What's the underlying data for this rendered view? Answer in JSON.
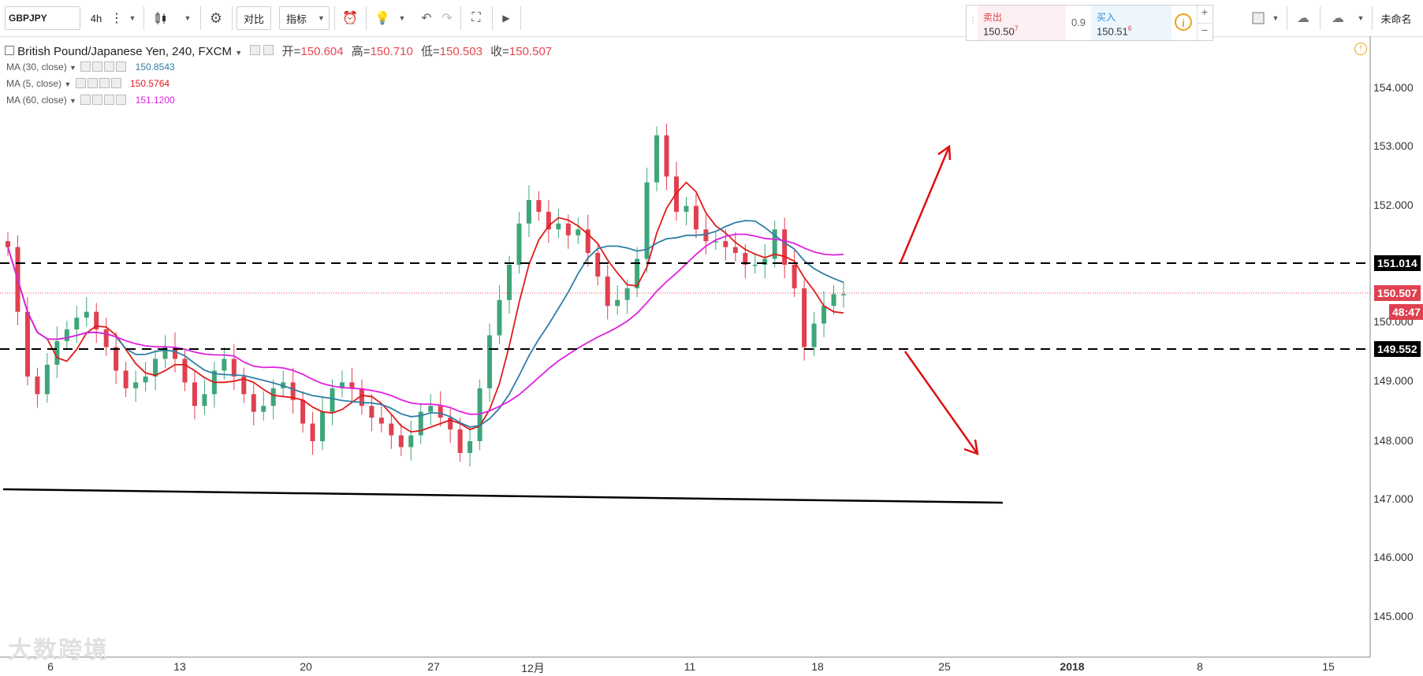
{
  "toolbar": {
    "symbol": "GBPJPY",
    "interval": "4h",
    "compare_label": "对比",
    "indicators_label": "指标",
    "layout_name": "未命名"
  },
  "quote": {
    "sell_label": "卖出",
    "sell_price": "150.50",
    "sell_price_sup": "7",
    "spread": "0.9",
    "buy_label": "买入",
    "buy_price": "150.51",
    "buy_price_sup": "6"
  },
  "header": {
    "title": "British Pound/Japanese Yen, 240, FXCM",
    "open_label": "开=",
    "open": "150.604",
    "high_label": "高=",
    "high": "150.710",
    "low_label": "低=",
    "low": "150.503",
    "close_label": "收=",
    "close": "150.507"
  },
  "indicators": [
    {
      "name": "MA (30, close)",
      "value": "150.8543",
      "color": "#2f7ea5"
    },
    {
      "name": "MA (5, close)",
      "value": "150.5764",
      "color": "#e01b1b"
    },
    {
      "name": "MA (60, close)",
      "value": "151.1200",
      "color": "#e020e0"
    }
  ],
  "price_axis": {
    "labels": [
      "154.000",
      "153.000",
      "152.000",
      "150.000",
      "149.000",
      "148.000",
      "147.000",
      "146.000",
      "145.000"
    ],
    "upper_level_tag": "151.014",
    "last_price_tag": "150.507",
    "countdown_tag": "48:47",
    "lower_level_tag": "149.552"
  },
  "time_axis": {
    "labels": [
      "6",
      "13",
      "20",
      "27",
      "12月",
      "11",
      "18",
      "25",
      "2018",
      "8",
      "15"
    ]
  },
  "watermark": "大数跨境",
  "colors": {
    "bull": "#3ea67a",
    "bear": "#e04050",
    "ma5": "#e01b1b",
    "ma30": "#2f7ea5",
    "ma60": "#e020e0",
    "arrow": "#dd1111",
    "level_line": "#000000"
  },
  "chart_data": {
    "type": "candlestick",
    "instrument": "GBPJPY",
    "ylim": [
      144.7,
      154.6
    ],
    "support_resistance": {
      "upper": 151.014,
      "lower": 149.552
    },
    "trendline": {
      "from": 147.1,
      "to": 146.9
    },
    "candle_closes": [
      151.3,
      150.2,
      149.1,
      148.8,
      149.3,
      149.7,
      149.9,
      150.1,
      150.2,
      149.9,
      149.6,
      149.2,
      148.9,
      149.0,
      149.1,
      149.4,
      149.6,
      149.4,
      149.0,
      148.6,
      148.8,
      149.2,
      149.4,
      149.1,
      148.8,
      148.5,
      148.6,
      148.9,
      149.0,
      148.7,
      148.3,
      148.0,
      148.5,
      148.9,
      149.0,
      148.9,
      148.6,
      148.4,
      148.3,
      148.1,
      147.9,
      148.1,
      148.5,
      148.6,
      148.4,
      148.2,
      147.8,
      148.0,
      148.9,
      149.8,
      150.4,
      151.0,
      151.7,
      152.1,
      151.9,
      151.6,
      151.7,
      151.5,
      151.6,
      151.2,
      150.8,
      150.3,
      150.4,
      150.6,
      151.1,
      152.4,
      153.2,
      152.5,
      151.9,
      152.0,
      151.6,
      151.4,
      151.4,
      151.3,
      151.2,
      151.0,
      151.0,
      151.1,
      151.6,
      151.0,
      150.6,
      149.6,
      150.0,
      150.3,
      150.5,
      150.5
    ],
    "ma5_last": 150.5764,
    "ma30_last": 150.8543,
    "ma60_last": 151.12
  }
}
